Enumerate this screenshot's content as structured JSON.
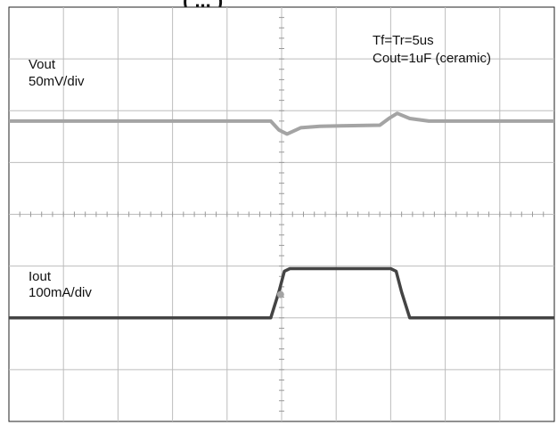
{
  "title_fragment": "(  ...  )",
  "annotations": {
    "vout_name": "Vout",
    "vout_scale": "50mV/div",
    "iout_name": "Iout",
    "iout_scale": "100mA/div",
    "timing": "Tf=Tr=5us",
    "cap": "Cout=1uF (ceramic)"
  },
  "colors": {
    "background": "#ffffff",
    "grid": "#bdbdbd",
    "vout_trace": "#a4a4a4",
    "iout_trace": "#444444"
  },
  "chart_data": {
    "type": "line",
    "grid": true,
    "divisions": {
      "x": 10,
      "y": 8
    },
    "xlim": [
      0,
      10
    ],
    "ylim": [
      0,
      8
    ],
    "series": [
      {
        "name": "Vout",
        "points": [
          [
            0,
            5.8
          ],
          [
            4.8,
            5.8
          ],
          [
            4.95,
            5.63
          ],
          [
            5.1,
            5.55
          ],
          [
            5.35,
            5.67
          ],
          [
            5.7,
            5.7
          ],
          [
            6.8,
            5.72
          ],
          [
            6.98,
            5.86
          ],
          [
            7.12,
            5.95
          ],
          [
            7.35,
            5.85
          ],
          [
            7.7,
            5.8
          ],
          [
            10,
            5.8
          ]
        ]
      },
      {
        "name": "Iout",
        "points": [
          [
            0,
            2.0
          ],
          [
            4.8,
            2.0
          ],
          [
            4.95,
            2.5
          ],
          [
            5.05,
            2.9
          ],
          [
            5.15,
            2.95
          ],
          [
            7.0,
            2.95
          ],
          [
            7.1,
            2.9
          ],
          [
            7.2,
            2.5
          ],
          [
            7.35,
            2.0
          ],
          [
            10,
            2.0
          ]
        ]
      }
    ]
  }
}
